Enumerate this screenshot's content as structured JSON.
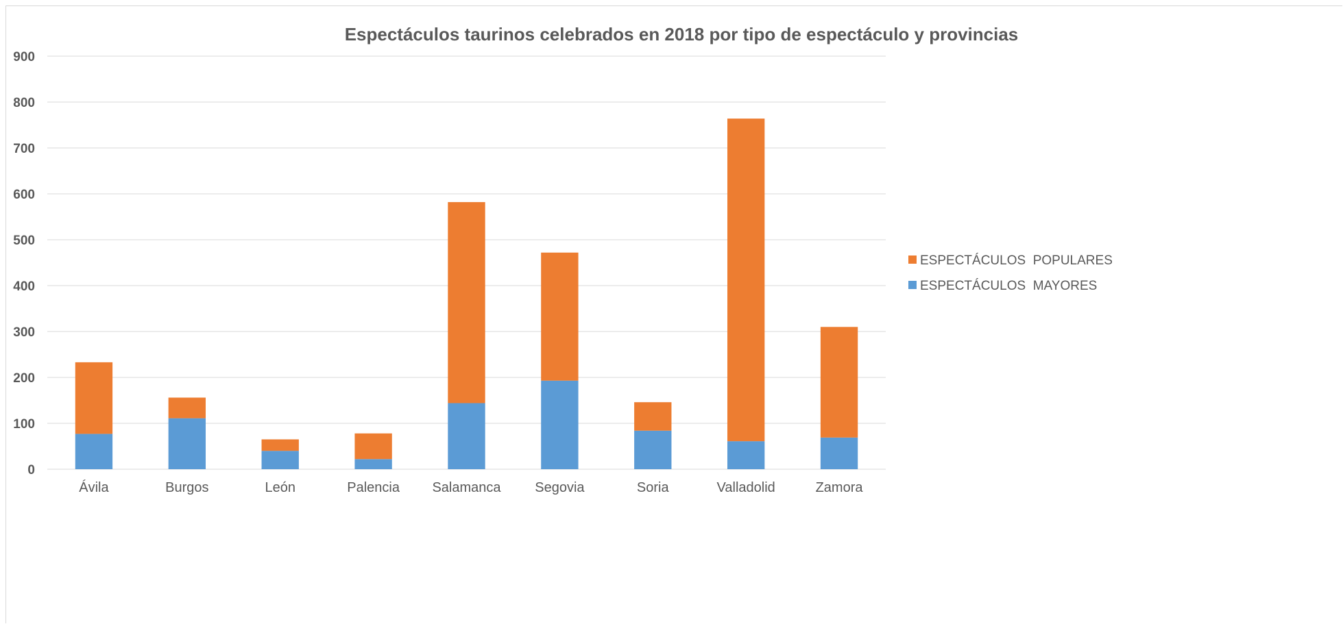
{
  "chart_data": {
    "type": "bar",
    "stacked": true,
    "title": "Espectáculos taurinos celebrados en 2018 por tipo de espectáculo y provincias",
    "xlabel": "",
    "ylabel": "",
    "categories": [
      "Ávila",
      "Burgos",
      "León",
      "Palencia",
      "Salamanca",
      "Segovia",
      "Soria",
      "Valladolid",
      "Zamora"
    ],
    "series": [
      {
        "name": "ESPECTÁCULOS  MAYORES",
        "color": "#5b9bd5",
        "values": [
          77,
          111,
          40,
          22,
          144,
          193,
          84,
          61,
          69
        ]
      },
      {
        "name": "ESPECTÁCULOS  POPULARES",
        "color": "#ed7d31",
        "values": [
          156,
          45,
          25,
          56,
          438,
          279,
          62,
          703,
          241
        ]
      }
    ],
    "ylim": [
      0,
      900
    ],
    "yticks": [
      0,
      100,
      200,
      300,
      400,
      500,
      600,
      700,
      800,
      900
    ],
    "grid": true,
    "legend": {
      "placement": "right",
      "order": [
        "ESPECTÁCULOS  POPULARES",
        "ESPECTÁCULOS  MAYORES"
      ]
    }
  }
}
